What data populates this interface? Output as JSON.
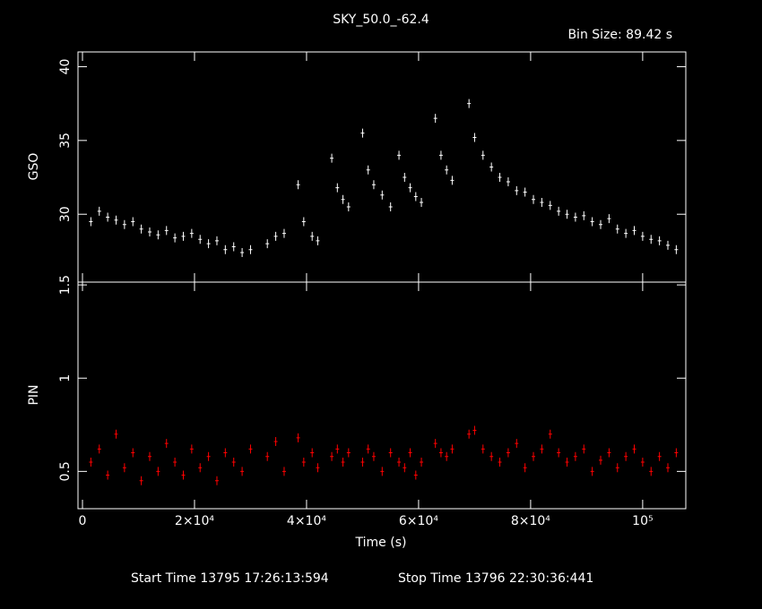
{
  "chart_data": [
    {
      "type": "scatter",
      "title": "SKY_50.0_-62.4",
      "subtitle": "Bin Size: 89.42 s",
      "y_label": "GSO",
      "x": [
        1500,
        3000,
        4500,
        6000,
        7500,
        9000,
        10500,
        12000,
        13500,
        15000,
        16500,
        18000,
        19500,
        21000,
        22500,
        24000,
        25500,
        27000,
        28500,
        30000,
        33000,
        34500,
        36000,
        38500,
        39500,
        41000,
        42000,
        44500,
        45500,
        46500,
        47500,
        50000,
        51000,
        52000,
        53500,
        55000,
        56500,
        57500,
        58500,
        59500,
        60500,
        63000,
        64000,
        65000,
        66000,
        69000,
        70000,
        71500,
        73000,
        74500,
        76000,
        77500,
        79000,
        80500,
        82000,
        83500,
        85000,
        86500,
        88000,
        89500,
        91000,
        92500,
        94000,
        95500,
        97000,
        98500,
        100000,
        101500,
        103000,
        104500,
        106000
      ],
      "values": [
        29.5,
        30.2,
        29.8,
        29.6,
        29.3,
        29.5,
        29.0,
        28.8,
        28.6,
        28.9,
        28.4,
        28.5,
        28.7,
        28.3,
        28.0,
        28.2,
        27.6,
        27.8,
        27.4,
        27.6,
        28.0,
        28.5,
        28.7,
        32.0,
        29.5,
        28.5,
        28.2,
        33.8,
        31.8,
        31.0,
        30.5,
        35.5,
        33.0,
        32.0,
        31.3,
        30.5,
        34.0,
        32.5,
        31.8,
        31.2,
        30.8,
        36.5,
        34.0,
        33.0,
        32.3,
        37.5,
        35.2,
        34.0,
        33.2,
        32.5,
        32.2,
        31.6,
        31.5,
        31.0,
        30.8,
        30.6,
        30.2,
        30.0,
        29.8,
        29.9,
        29.5,
        29.3,
        29.7,
        29.0,
        28.7,
        28.9,
        28.5,
        28.3,
        28.2,
        27.9,
        27.6
      ],
      "color": "#ffffff",
      "xlim": [
        -800,
        107700
      ],
      "ylim": [
        25.4,
        41.0
      ],
      "yticks": [
        30,
        35,
        40
      ]
    },
    {
      "type": "scatter",
      "x_label": "Time (s)",
      "y_label": "PIN",
      "x": [
        1500,
        3000,
        4500,
        6000,
        7500,
        9000,
        10500,
        12000,
        13500,
        15000,
        16500,
        18000,
        19500,
        21000,
        22500,
        24000,
        25500,
        27000,
        28500,
        30000,
        33000,
        34500,
        36000,
        38500,
        39500,
        41000,
        42000,
        44500,
        45500,
        46500,
        47500,
        50000,
        51000,
        52000,
        53500,
        55000,
        56500,
        57500,
        58500,
        59500,
        60500,
        63000,
        64000,
        65000,
        66000,
        69000,
        70000,
        71500,
        73000,
        74500,
        76000,
        77500,
        79000,
        80500,
        82000,
        83500,
        85000,
        86500,
        88000,
        89500,
        91000,
        92500,
        94000,
        95500,
        97000,
        98500,
        100000,
        101500,
        103000,
        104500,
        106000
      ],
      "values": [
        0.55,
        0.62,
        0.48,
        0.7,
        0.52,
        0.6,
        0.45,
        0.58,
        0.5,
        0.65,
        0.55,
        0.48,
        0.62,
        0.52,
        0.58,
        0.45,
        0.6,
        0.55,
        0.5,
        0.62,
        0.58,
        0.66,
        0.5,
        0.68,
        0.55,
        0.6,
        0.52,
        0.58,
        0.62,
        0.55,
        0.6,
        0.55,
        0.62,
        0.58,
        0.5,
        0.6,
        0.55,
        0.52,
        0.6,
        0.48,
        0.55,
        0.65,
        0.6,
        0.58,
        0.62,
        0.7,
        0.72,
        0.62,
        0.58,
        0.55,
        0.6,
        0.65,
        0.52,
        0.58,
        0.62,
        0.7,
        0.6,
        0.55,
        0.58,
        0.62,
        0.5,
        0.56,
        0.6,
        0.52,
        0.58,
        0.62,
        0.55,
        0.5,
        0.58,
        0.52,
        0.6
      ],
      "color": "#ff0000",
      "xlim": [
        -800,
        107700
      ],
      "ylim": [
        0.3,
        1.515
      ],
      "yticks": [
        0.5,
        1,
        1.5
      ],
      "xticks": [
        0,
        {
          "value": 20000,
          "label": "2×10⁴"
        },
        {
          "value": 40000,
          "label": "4×10⁴"
        },
        {
          "value": 60000,
          "label": "6×10⁴"
        },
        {
          "value": 80000,
          "label": "8×10⁴"
        },
        {
          "value": 100000,
          "label": "10⁵"
        }
      ]
    }
  ],
  "footer": {
    "start": "Start Time 13795 17:26:13:594",
    "stop": "Stop Time 13796 22:30:36:441"
  }
}
